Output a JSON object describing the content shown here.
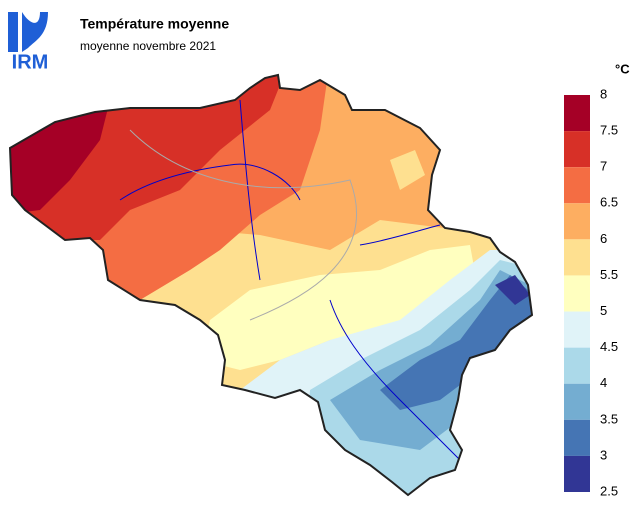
{
  "header": {
    "logo": "IRM",
    "title": "Température moyenne",
    "subtitle": "moyenne novembre 2021"
  },
  "legend": {
    "unit": "°C",
    "ticks": [
      8,
      7.5,
      7,
      6.5,
      6,
      5.5,
      5,
      4.5,
      4,
      3.5,
      3,
      2.5
    ],
    "colors": [
      "#a50026",
      "#d73027",
      "#f46d43",
      "#fdae61",
      "#fee090",
      "#ffffbf",
      "#e0f3f8",
      "#abd9e9",
      "#74add1",
      "#4575b4",
      "#313695"
    ]
  }
}
